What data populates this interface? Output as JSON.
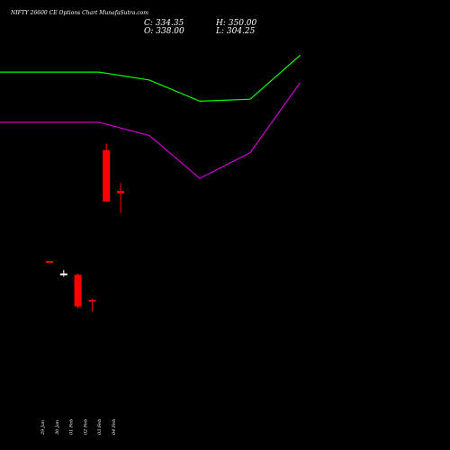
{
  "header": {
    "title": "NIFTY 26600 CE Options Chart MunafaSutra.com",
    "close_label": "C: 334.35",
    "high_label": "H: 350.00",
    "open_label": "O: 338.00",
    "low_label": "L: 304.25"
  },
  "chart_data": {
    "type": "candlestick",
    "categories": [
      "29 Jan",
      "30 Jan",
      "01 Feb",
      "02 Feb",
      "03 Feb",
      "04 Feb"
    ],
    "ylim": [
      0,
      600
    ],
    "candles": [
      {
        "date": "29 Jan",
        "open": 232,
        "high": 232,
        "low": 230,
        "close": 230
      },
      {
        "date": "30 Jan",
        "open": 211,
        "high": 218,
        "low": 208,
        "close": 213
      },
      {
        "date": "01 Feb",
        "open": 211,
        "high": 213,
        "low": 160,
        "close": 163
      },
      {
        "date": "02 Feb",
        "open": 173,
        "high": 175,
        "low": 155,
        "close": 171
      },
      {
        "date": "03 Feb",
        "open": 400,
        "high": 410,
        "low": 322,
        "close": 322
      },
      {
        "date": "04 Feb",
        "open": 338,
        "high": 350,
        "low": 304.25,
        "close": 334.35
      }
    ],
    "upper_band": {
      "x": [
        "29 Jan",
        "30 Jan",
        "01 Feb",
        "02 Feb",
        "03 Feb",
        "04 Feb"
      ],
      "values": [
        518,
        518,
        506,
        474,
        477,
        543
      ]
    },
    "lower_band": {
      "x": [
        "29 Jan",
        "30 Jan",
        "01 Feb",
        "02 Feb",
        "03 Feb",
        "04 Feb"
      ],
      "values": [
        442,
        442,
        422,
        357,
        396,
        501
      ]
    },
    "colors": {
      "background": "#000000",
      "bear": "#ff0000",
      "bull": "#ffffff",
      "upper_band": "#00ff00",
      "lower_band": "#cc00cc"
    }
  }
}
